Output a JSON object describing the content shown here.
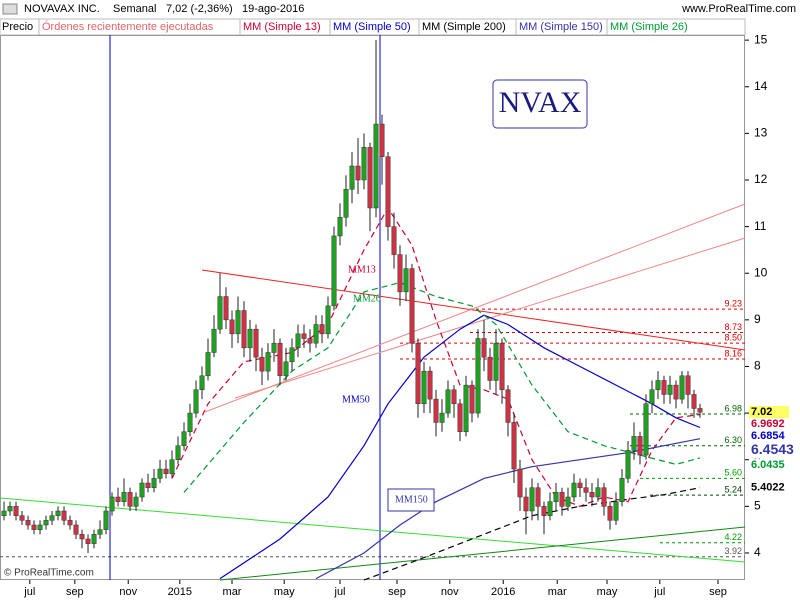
{
  "chart_data": {
    "type": "candlestick",
    "header": {
      "name": "NOVAVAX INC.",
      "period": "Semanal",
      "change": "7,02 (-2,36%)",
      "date": "19-ago-2016",
      "site": "www.ProRealTime.com"
    },
    "legend_extra": [
      {
        "name": "Precio",
        "color": "#000000"
      },
      {
        "name": "Órdenes recientemente ejecutadas",
        "color": "#e06666"
      }
    ],
    "symbol": "NVAX",
    "copyright": "© ProRealTime.com",
    "xlim": [
      -0.67,
      123.5
    ],
    "ylim": [
      3.42,
      15.11
    ],
    "yticks": [
      4,
      5,
      6,
      7,
      8,
      9,
      10,
      11,
      12,
      13,
      14,
      15
    ],
    "xticks": [
      {
        "value": 4.3,
        "label": "jul"
      },
      {
        "value": 11.8,
        "label": "sep"
      },
      {
        "value": 20.7,
        "label": "nov"
      },
      {
        "value": 29.3,
        "label": "2015"
      },
      {
        "value": 38,
        "label": "mar"
      },
      {
        "value": 46.7,
        "label": "may"
      },
      {
        "value": 56,
        "label": "jul"
      },
      {
        "value": 65.5,
        "label": "sep"
      },
      {
        "value": 74.3,
        "label": "nov"
      },
      {
        "value": 83.2,
        "label": "2016"
      },
      {
        "value": 92.2,
        "label": "mar"
      },
      {
        "value": 100.5,
        "label": "may"
      },
      {
        "value": 109.3,
        "label": "jul"
      },
      {
        "value": 119,
        "label": "sep"
      }
    ],
    "up_color": "#22a022",
    "down_color": "#cc3344",
    "candles": [
      [
        4.8,
        5.1,
        4.7,
        4.9
      ],
      [
        4.9,
        5.1,
        4.8,
        5.0
      ],
      [
        5.0,
        5.1,
        4.7,
        4.8
      ],
      [
        4.8,
        4.9,
        4.6,
        4.7
      ],
      [
        4.7,
        4.8,
        4.5,
        4.6
      ],
      [
        4.6,
        4.7,
        4.4,
        4.5
      ],
      [
        4.5,
        4.7,
        4.4,
        4.6
      ],
      [
        4.6,
        4.8,
        4.5,
        4.7
      ],
      [
        4.7,
        4.9,
        4.6,
        4.8
      ],
      [
        4.8,
        5.0,
        4.7,
        4.9
      ],
      [
        4.9,
        5.0,
        4.6,
        4.7
      ],
      [
        4.7,
        4.8,
        4.5,
        4.6
      ],
      [
        4.6,
        4.7,
        4.3,
        4.4
      ],
      [
        4.4,
        4.5,
        4.1,
        4.3
      ],
      [
        4.3,
        4.4,
        4.0,
        4.2
      ],
      [
        4.2,
        4.5,
        4.1,
        4.4
      ],
      [
        4.4,
        4.7,
        4.3,
        4.5
      ],
      [
        4.5,
        5.0,
        4.4,
        4.9
      ],
      [
        4.9,
        5.3,
        4.8,
        5.2
      ],
      [
        5.2,
        5.4,
        5.0,
        5.1
      ],
      [
        5.1,
        5.6,
        5.0,
        5.3
      ],
      [
        5.3,
        5.4,
        4.9,
        5.0
      ],
      [
        5.0,
        5.3,
        4.9,
        5.2
      ],
      [
        5.2,
        5.6,
        5.1,
        5.5
      ],
      [
        5.5,
        5.7,
        5.3,
        5.4
      ],
      [
        5.4,
        5.8,
        5.3,
        5.6
      ],
      [
        5.6,
        6.0,
        5.5,
        5.8
      ],
      [
        5.8,
        6.0,
        5.6,
        5.7
      ],
      [
        5.7,
        6.2,
        5.6,
        6.0
      ],
      [
        6.0,
        6.5,
        5.9,
        6.3
      ],
      [
        6.3,
        6.8,
        6.2,
        6.6
      ],
      [
        6.6,
        7.2,
        6.5,
        7.0
      ],
      [
        7.0,
        7.7,
        6.9,
        7.5
      ],
      [
        7.5,
        8.0,
        7.3,
        7.8
      ],
      [
        7.8,
        8.6,
        7.7,
        8.3
      ],
      [
        8.3,
        9.1,
        8.2,
        8.8
      ],
      [
        8.8,
        10.0,
        8.7,
        9.5
      ],
      [
        9.5,
        9.7,
        8.8,
        9.0
      ],
      [
        9.0,
        9.2,
        8.4,
        8.7
      ],
      [
        8.7,
        9.5,
        8.5,
        9.2
      ],
      [
        9.2,
        9.4,
        8.2,
        8.4
      ],
      [
        8.4,
        9.0,
        8.1,
        8.8
      ],
      [
        8.8,
        8.9,
        7.9,
        8.2
      ],
      [
        8.2,
        8.4,
        7.6,
        7.9
      ],
      [
        7.9,
        8.5,
        7.7,
        8.3
      ],
      [
        8.3,
        8.8,
        8.1,
        8.5
      ],
      [
        8.5,
        8.6,
        7.6,
        7.8
      ],
      [
        7.8,
        8.4,
        7.7,
        8.1
      ],
      [
        8.1,
        8.6,
        7.9,
        8.4
      ],
      [
        8.4,
        8.9,
        8.2,
        8.7
      ],
      [
        8.7,
        8.9,
        8.4,
        8.6
      ],
      [
        8.6,
        8.8,
        8.3,
        8.5
      ],
      [
        8.5,
        9.1,
        8.4,
        8.9
      ],
      [
        8.9,
        9.1,
        8.5,
        8.7
      ],
      [
        8.7,
        9.5,
        8.6,
        9.3
      ],
      [
        9.3,
        11.0,
        9.2,
        10.8
      ],
      [
        10.8,
        11.5,
        10.6,
        11.2
      ],
      [
        11.2,
        12.1,
        11.0,
        11.8
      ],
      [
        11.8,
        12.6,
        11.5,
        12.3
      ],
      [
        12.3,
        12.9,
        11.7,
        12.0
      ],
      [
        12.0,
        13.0,
        11.8,
        12.7
      ],
      [
        12.7,
        12.8,
        10.9,
        11.4
      ],
      [
        11.4,
        15.0,
        11.2,
        13.2
      ],
      [
        13.2,
        13.4,
        11.9,
        12.5
      ],
      [
        12.5,
        12.6,
        10.7,
        11.0
      ],
      [
        11.0,
        11.3,
        10.1,
        10.4
      ],
      [
        10.4,
        10.6,
        9.3,
        9.6
      ],
      [
        9.6,
        10.4,
        9.4,
        10.1
      ],
      [
        10.1,
        10.2,
        8.3,
        8.5
      ],
      [
        8.5,
        8.6,
        6.9,
        7.2
      ],
      [
        7.2,
        8.1,
        7.0,
        7.9
      ],
      [
        7.9,
        8.0,
        7.0,
        7.3
      ],
      [
        7.3,
        7.5,
        6.5,
        6.8
      ],
      [
        6.8,
        7.3,
        6.6,
        7.0
      ],
      [
        7.0,
        7.7,
        6.9,
        7.5
      ],
      [
        7.5,
        7.6,
        6.9,
        7.2
      ],
      [
        7.2,
        7.3,
        6.4,
        6.6
      ],
      [
        6.6,
        7.8,
        6.5,
        7.6
      ],
      [
        7.6,
        7.7,
        6.8,
        7.0
      ],
      [
        7.0,
        8.8,
        6.9,
        8.6
      ],
      [
        8.6,
        9.0,
        7.9,
        8.2
      ],
      [
        8.2,
        8.4,
        7.5,
        7.7
      ],
      [
        7.7,
        8.8,
        7.4,
        8.5
      ],
      [
        8.5,
        8.6,
        7.2,
        7.5
      ],
      [
        7.5,
        7.6,
        6.5,
        6.8
      ],
      [
        6.8,
        7.0,
        5.5,
        5.8
      ],
      [
        5.8,
        6.0,
        4.9,
        5.2
      ],
      [
        5.2,
        5.4,
        4.4,
        4.9
      ],
      [
        4.9,
        5.6,
        4.7,
        5.4
      ],
      [
        5.4,
        5.5,
        4.7,
        5.0
      ],
      [
        5.0,
        5.1,
        4.4,
        4.8
      ],
      [
        4.8,
        5.3,
        4.7,
        5.1
      ],
      [
        5.1,
        5.5,
        4.9,
        5.3
      ],
      [
        5.3,
        5.4,
        4.8,
        5.0
      ],
      [
        5.0,
        5.4,
        4.9,
        5.2
      ],
      [
        5.2,
        5.7,
        5.1,
        5.5
      ],
      [
        5.5,
        5.6,
        5.2,
        5.4
      ],
      [
        5.4,
        5.6,
        5.1,
        5.3
      ],
      [
        5.3,
        5.5,
        5.0,
        5.2
      ],
      [
        5.2,
        5.6,
        5.1,
        5.4
      ],
      [
        5.4,
        5.5,
        4.8,
        5.0
      ],
      [
        5.0,
        5.1,
        4.5,
        4.7
      ],
      [
        4.7,
        5.3,
        4.6,
        5.1
      ],
      [
        5.1,
        5.8,
        5.0,
        5.6
      ],
      [
        5.6,
        6.4,
        5.5,
        6.2
      ],
      [
        6.2,
        6.8,
        6.0,
        6.5
      ],
      [
        6.5,
        6.6,
        5.9,
        6.1
      ],
      [
        6.1,
        7.4,
        6.0,
        7.2
      ],
      [
        7.2,
        7.7,
        7.0,
        7.5
      ],
      [
        7.5,
        7.9,
        7.3,
        7.7
      ],
      [
        7.7,
        7.8,
        7.2,
        7.4
      ],
      [
        7.4,
        7.8,
        7.2,
        7.6
      ],
      [
        7.6,
        7.7,
        7.1,
        7.3
      ],
      [
        7.3,
        7.9,
        7.2,
        7.8
      ],
      [
        7.8,
        7.9,
        7.1,
        7.4
      ],
      [
        7.4,
        7.5,
        6.9,
        7.1
      ],
      [
        7.1,
        7.2,
        6.9,
        7.02
      ]
    ],
    "series": [
      {
        "name": "MM (Simple 13)",
        "color": "#cc0033",
        "dash": true,
        "tag": "MM13",
        "x": [
          28,
          34,
          40,
          48,
          54,
          60,
          64,
          68,
          72,
          76,
          80,
          84,
          88,
          92,
          96,
          100,
          104,
          108,
          112,
          116
        ],
        "values": [
          5.6,
          7.2,
          8.1,
          8.3,
          8.9,
          10.5,
          11.4,
          10.6,
          9.0,
          7.6,
          7.5,
          7.3,
          6.0,
          5.2,
          5.0,
          5.2,
          5.1,
          6.2,
          6.9,
          6.97
        ]
      },
      {
        "name": "MM (Simple 50)",
        "color": "#0000cc",
        "dash": false,
        "tag": "MM50",
        "x": [
          36,
          46,
          54,
          60,
          64,
          70,
          76,
          80,
          84,
          90,
          96,
          102,
          108,
          112,
          116
        ],
        "values": [
          3.45,
          4.3,
          5.2,
          6.3,
          7.2,
          8.2,
          8.8,
          9.1,
          8.9,
          8.4,
          8.0,
          7.6,
          7.2,
          6.9,
          6.69
        ]
      },
      {
        "name": "MM (Simple 200)",
        "color": "#000000",
        "dash": true,
        "x": [
          60,
          70,
          80,
          88,
          96,
          104,
          110,
          116
        ],
        "values": [
          3.42,
          3.9,
          4.4,
          4.8,
          5.0,
          5.15,
          5.25,
          5.4
        ]
      },
      {
        "name": "MM (Simple 150)",
        "color": "#3333aa",
        "dash": false,
        "tag": "MM150",
        "x": [
          52,
          60,
          66,
          72,
          80,
          88,
          96,
          104,
          110,
          116
        ],
        "values": [
          3.45,
          4.0,
          4.6,
          5.1,
          5.6,
          5.85,
          6.0,
          6.15,
          6.3,
          6.45
        ]
      },
      {
        "name": "MM (Simple 26)",
        "color": "#009933",
        "dash": true,
        "tag": "MM26",
        "x": [
          30,
          40,
          48,
          54,
          60,
          66,
          72,
          78,
          82,
          88,
          94,
          100,
          106,
          112,
          116
        ],
        "values": [
          5.3,
          6.8,
          7.9,
          8.4,
          9.6,
          9.8,
          9.5,
          9.3,
          8.9,
          7.6,
          6.6,
          6.3,
          6.1,
          5.9,
          6.04
        ]
      }
    ],
    "levels": [
      {
        "value": 9.23,
        "label": "9.23",
        "color": "#dd0000"
      },
      {
        "value": 8.73,
        "label": "8.73",
        "color": "#dd0000"
      },
      {
        "value": 8.5,
        "label": "8.50",
        "color": "#dd0000"
      },
      {
        "value": 8.16,
        "label": "8.16",
        "color": "#dd0000"
      },
      {
        "value": 6.98,
        "label": "6.98",
        "color": "#006600"
      },
      {
        "value": 6.3,
        "label": "6.30",
        "color": "#006600"
      },
      {
        "value": 5.6,
        "label": "5.60",
        "color": "#009900"
      },
      {
        "value": 5.24,
        "label": "5.24",
        "color": "#004400"
      },
      {
        "value": 4.22,
        "label": "4.22",
        "color": "#009900"
      },
      {
        "value": 3.92,
        "label": "3.92",
        "color": "#555555"
      }
    ],
    "price_tags": [
      {
        "value": 7.02,
        "label": "7.02",
        "color": "#000000",
        "bg": "#ffff66"
      },
      {
        "value": 6.9692,
        "label": "6.9692",
        "color": "#cc0033",
        "bg": "#ffffff"
      },
      {
        "value": 6.6854,
        "label": "6.6854",
        "color": "#0000cc",
        "bg": "#ffffff"
      },
      {
        "value": 6.4543,
        "label": "6.4543",
        "color": "#3333aa",
        "bg": "#ffffff",
        "big": true
      },
      {
        "value": 6.0435,
        "label": "6.0435",
        "color": "#009933",
        "bg": "#ffffff"
      },
      {
        "value": 5.4022,
        "label": "5.4022",
        "color": "#000000",
        "bg": "#ffffff"
      }
    ]
  }
}
